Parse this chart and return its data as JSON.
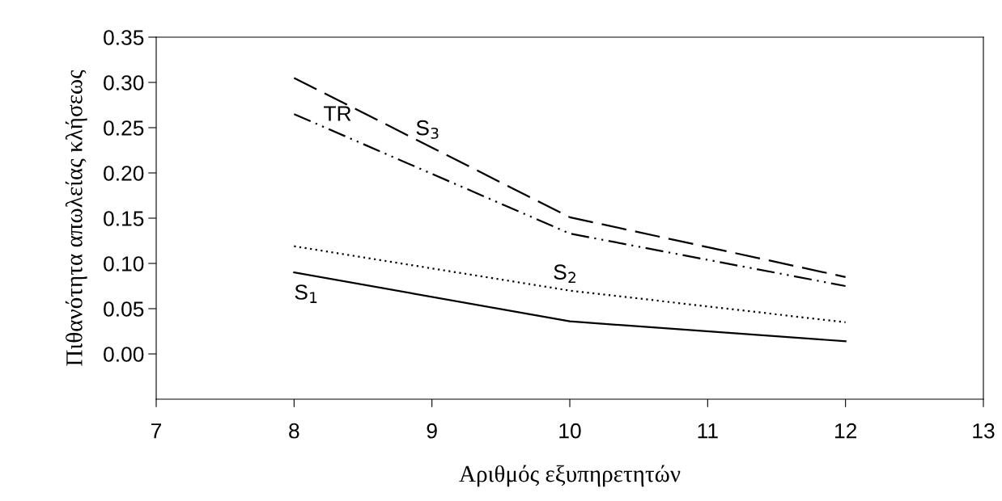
{
  "chart_data": {
    "type": "line",
    "xlabel": "Αριθμός εξυπηρετητών",
    "ylabel": "Πιθανότητα απωλείας κλήσεως",
    "x": [
      8,
      10,
      12
    ],
    "series": [
      {
        "name": "S$_{1}$",
        "color": "#000000",
        "line_style": "solid",
        "values": [
          0.09,
          0.036,
          0.014
        ]
      },
      {
        "name": "S$_{2}$",
        "color": "#000000",
        "line_style": "dotted",
        "values": [
          0.119,
          0.07,
          0.035
        ]
      },
      {
        "name": "TR",
        "color": "#000000",
        "line_style": "dashdotdot",
        "values": [
          0.265,
          0.133,
          0.075
        ]
      },
      {
        "name": "S$_{3}$",
        "color": "#000000",
        "line_style": "dashed",
        "values": [
          0.305,
          0.151,
          0.085
        ]
      }
    ],
    "xlim": [
      7,
      13
    ],
    "xticks": [
      7,
      8,
      9,
      10,
      11,
      12,
      13
    ],
    "ylim": [
      -0.05,
      0.35
    ],
    "yticks": [
      {
        "value": 0,
        "label": "0.00"
      },
      {
        "value": 0.05,
        "label": "0.05"
      },
      {
        "value": 0.1,
        "label": "0.10"
      },
      {
        "value": 0.15,
        "label": "0.15"
      },
      {
        "value": 0.2,
        "label": "0.20"
      },
      {
        "value": 0.25,
        "label": "0.25"
      },
      {
        "value": 0.3,
        "label": "0.30"
      },
      {
        "value": 0.35,
        "label": "0.35"
      }
    ],
    "grid": false,
    "legend": false,
    "marker": "none"
  }
}
